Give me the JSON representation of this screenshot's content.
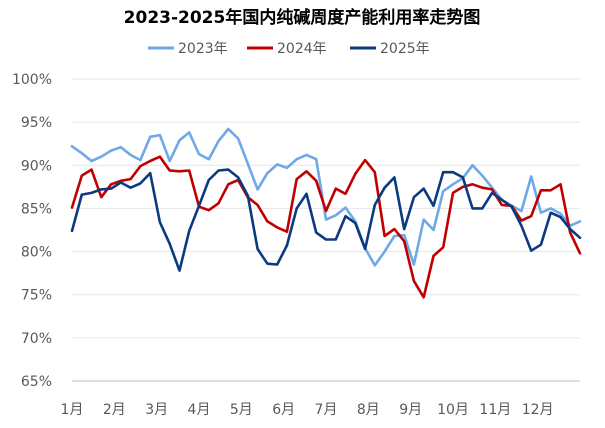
{
  "chart_data": {
    "type": "line",
    "title": "2023-2025年国内纯碱周度产能利用率走势图",
    "xlabel": "",
    "ylabel": "",
    "x_tick_labels": [
      "1月",
      "2月",
      "3月",
      "4月",
      "5月",
      "6月",
      "7月",
      "8月",
      "9月",
      "10月",
      "11月",
      "12月"
    ],
    "y_tick_labels": [
      "65%",
      "70%",
      "75%",
      "80%",
      "85%",
      "90%",
      "95%",
      "100%"
    ],
    "ylim": [
      65,
      100
    ],
    "grid": "horizontal",
    "legend_position": "top",
    "series": [
      {
        "name": "2023年",
        "color": "#6fa8e8",
        "values": [
          92.2,
          91.4,
          90.5,
          91.0,
          91.7,
          92.1,
          91.2,
          90.6,
          93.3,
          93.5,
          90.5,
          92.9,
          93.8,
          91.3,
          90.7,
          92.8,
          94.2,
          93.1,
          90.2,
          87.2,
          89.1,
          90.1,
          89.7,
          90.7,
          91.2,
          90.7,
          83.7,
          84.2,
          85.1,
          83.5,
          80.4,
          78.4,
          80.0,
          81.8,
          81.9,
          78.5,
          83.7,
          82.5,
          87.0,
          87.8,
          88.5,
          90.0,
          88.8,
          87.4,
          86.0,
          85.3,
          84.7,
          88.7,
          84.5,
          85.0,
          84.4,
          83.0,
          83.5
        ]
      },
      {
        "name": "2024年",
        "color": "#c00000",
        "values": [
          85.1,
          88.8,
          89.5,
          86.3,
          87.8,
          88.2,
          88.4,
          89.9,
          90.5,
          91.0,
          89.4,
          89.3,
          89.4,
          85.2,
          84.8,
          85.6,
          87.8,
          88.3,
          86.3,
          85.4,
          83.5,
          82.8,
          82.3,
          88.4,
          89.3,
          88.2,
          84.7,
          87.3,
          86.7,
          89.0,
          90.6,
          89.2,
          81.8,
          82.6,
          81.2,
          76.6,
          74.7,
          79.5,
          80.5,
          86.8,
          87.5,
          87.8,
          87.4,
          87.2,
          85.4,
          85.3,
          83.6,
          84.1,
          87.1,
          87.1,
          87.8,
          82.2,
          79.8
        ]
      },
      {
        "name": "2025年",
        "color": "#0b3a7e",
        "values": [
          82.4,
          86.6,
          86.8,
          87.2,
          87.3,
          88.0,
          87.4,
          87.9,
          89.1,
          83.4,
          80.9,
          77.8,
          82.4,
          85.3,
          88.3,
          89.4,
          89.5,
          88.6,
          86.5,
          80.3,
          78.6,
          78.5,
          80.7,
          85.0,
          86.7,
          82.2,
          81.4,
          81.4,
          84.1,
          83.3,
          80.3,
          85.4,
          87.4,
          88.6,
          82.6,
          86.3,
          87.3,
          85.3,
          89.2,
          89.2,
          88.6,
          85.0,
          85.0,
          86.8,
          86.0,
          85.2,
          83.0,
          80.1,
          80.8,
          84.5,
          84.0,
          82.6,
          81.6
        ]
      }
    ]
  }
}
